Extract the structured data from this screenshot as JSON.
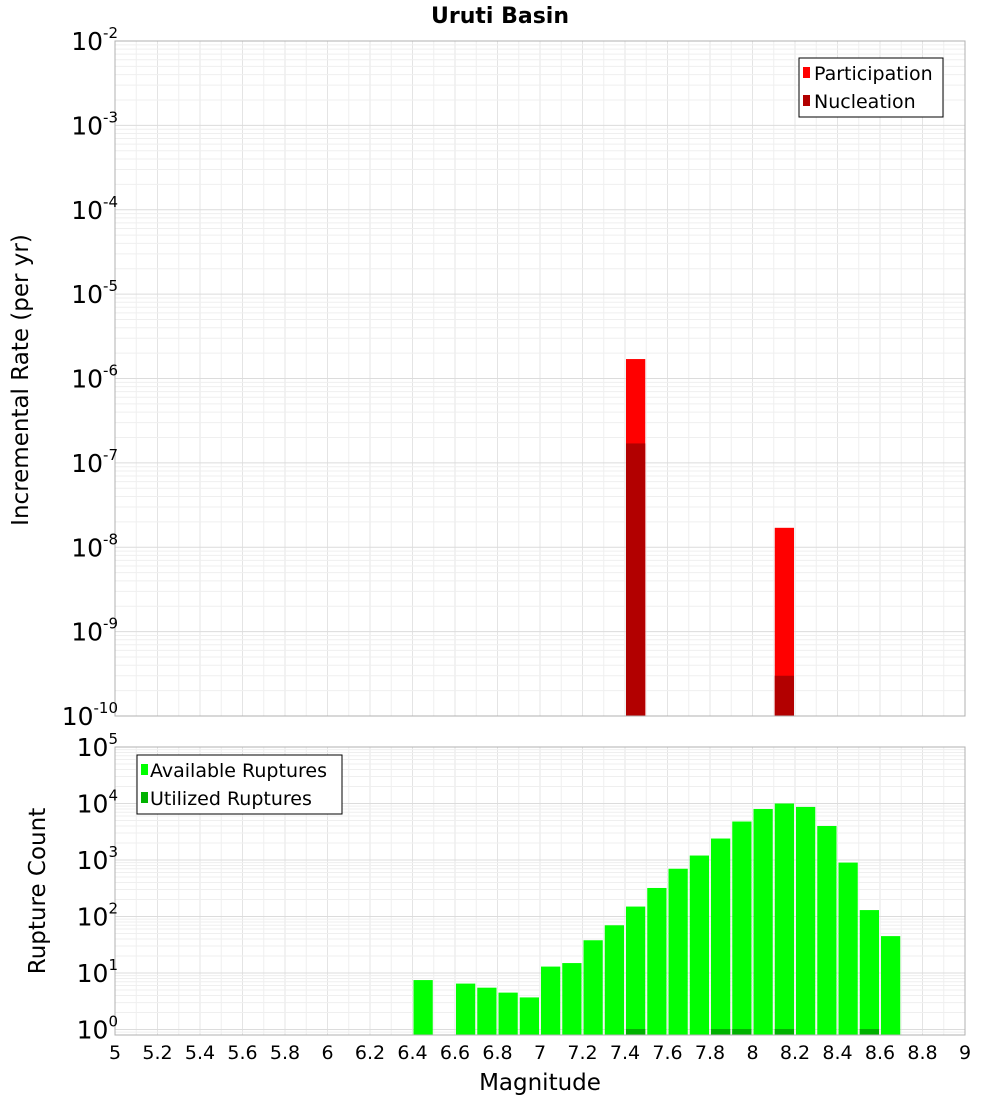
{
  "chart_data": [
    {
      "type": "bar",
      "title": "Uruti Basin",
      "ylabel": "Incremental Rate (per yr)",
      "xlabel": "",
      "yscale": "log",
      "ylim": [
        1e-10,
        0.01
      ],
      "xlim": [
        5,
        9
      ],
      "bin_width": 0.1,
      "y_ticks": [
        {
          "base": "10",
          "exp": "-2",
          "value": 0.01
        },
        {
          "base": "10",
          "exp": "-3",
          "value": 0.001
        },
        {
          "base": "10",
          "exp": "-4",
          "value": 0.0001
        },
        {
          "base": "10",
          "exp": "-5",
          "value": 1e-05
        },
        {
          "base": "10",
          "exp": "-6",
          "value": 1e-06
        },
        {
          "base": "10",
          "exp": "-7",
          "value": 1e-07
        },
        {
          "base": "10",
          "exp": "-8",
          "value": 1e-08
        },
        {
          "base": "10",
          "exp": "-9",
          "value": 1e-09
        },
        {
          "base": "10",
          "exp": "-10",
          "value": 1e-10
        }
      ],
      "legend_position": "top-right",
      "series": [
        {
          "name": "Participation",
          "color": "#ff0000",
          "x": [
            7.45,
            8.15
          ],
          "values": [
            1.7e-06,
            1.7e-08
          ]
        },
        {
          "name": "Nucleation",
          "color": "#b20000",
          "x": [
            7.45,
            8.15
          ],
          "values": [
            1.7e-07,
            3e-10
          ]
        }
      ],
      "grid": true
    },
    {
      "type": "bar",
      "title": "",
      "ylabel": "Rupture Count",
      "xlabel": "Magnitude",
      "yscale": "log",
      "ylim": [
        0.8,
        100000
      ],
      "xlim": [
        5,
        9
      ],
      "bin_width": 0.1,
      "y_ticks": [
        {
          "base": "10",
          "exp": "5",
          "value": 100000
        },
        {
          "base": "10",
          "exp": "4",
          "value": 10000
        },
        {
          "base": "10",
          "exp": "3",
          "value": 1000
        },
        {
          "base": "10",
          "exp": "2",
          "value": 100
        },
        {
          "base": "10",
          "exp": "1",
          "value": 10
        },
        {
          "base": "10",
          "exp": "0",
          "value": 1
        }
      ],
      "x_ticks": [
        "5",
        "5.2",
        "5.4",
        "5.6",
        "5.8",
        "6",
        "6.2",
        "6.4",
        "6.6",
        "6.8",
        "7",
        "7.2",
        "7.4",
        "7.6",
        "7.8",
        "8",
        "8.2",
        "8.4",
        "8.6",
        "8.8",
        "9"
      ],
      "legend_position": "top-left",
      "series": [
        {
          "name": "Available Ruptures",
          "color": "#00ff00",
          "x": [
            6.45,
            6.65,
            6.75,
            6.85,
            6.95,
            7.05,
            7.15,
            7.25,
            7.35,
            7.45,
            7.55,
            7.65,
            7.75,
            7.85,
            7.95,
            8.05,
            8.15,
            8.25,
            8.35,
            8.45,
            8.55,
            8.65
          ],
          "values": [
            7.5,
            6.5,
            5.5,
            4.5,
            3.7,
            13,
            15,
            38,
            70,
            150,
            320,
            700,
            1200,
            2400,
            4800,
            8000,
            10000,
            8700,
            4000,
            900,
            130,
            45
          ]
        },
        {
          "name": "Utilized Ruptures",
          "color": "#00b200",
          "x": [
            7.45,
            7.85,
            7.95,
            8.15,
            8.55
          ],
          "values": [
            1,
            1,
            1,
            1,
            1
          ]
        }
      ],
      "grid": true
    }
  ]
}
